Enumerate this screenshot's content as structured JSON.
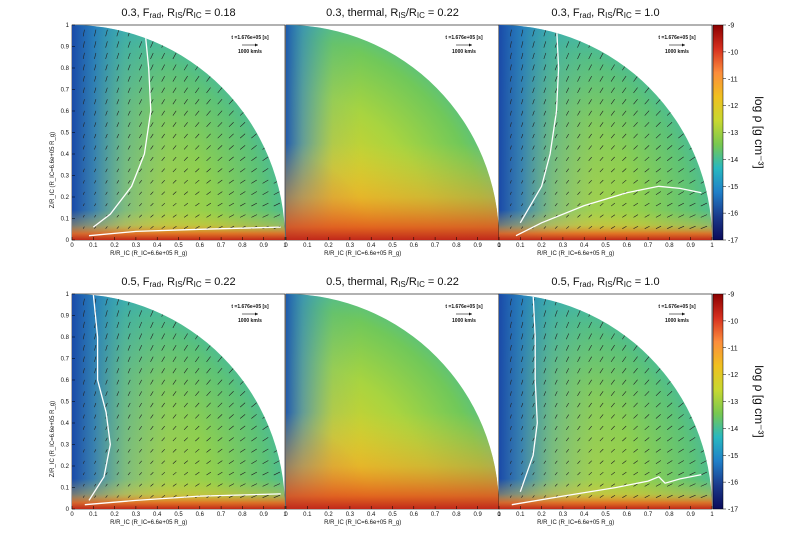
{
  "chart_data": [
    {
      "type": "heatmap",
      "title": "0.3, F<sub>rad</sub>, R<sub>IS</sub>/R<sub>IC</sub> = 0.18",
      "title_text": "0.3, Fᵣₐd, RIS/RIC = 0.18",
      "xlabel": "R/R_IC (R_IC=6.6e+05 R_g)",
      "ylabel": "Z/R_IC (R_IC=6.6e+05 R_g)",
      "xlim": [
        0,
        1
      ],
      "ylim": [
        0,
        1
      ],
      "time_label": "t =1.676e+05 [s]",
      "velocity_label": "1000 km/s",
      "contours": 2
    },
    {
      "type": "heatmap",
      "title_text": "0.3, thermal, RIS/RIC = 0.22",
      "xlabel": "R/R_IC (R_IC=6.6e+05 R_g)",
      "xlim": [
        0,
        1
      ],
      "ylim": [
        0,
        1
      ],
      "time_label": "t =1.676e+05 [s]",
      "velocity_label": "1000 km/s",
      "contours": 0
    },
    {
      "type": "heatmap",
      "title_text": "0.3, Fᵣₐd, RIS/RIC = 1.0",
      "xlabel": "R/R_IC (R_IC=6.6e+05 R_g)",
      "xlim": [
        0,
        1
      ],
      "ylim": [
        0,
        1
      ],
      "time_label": "t =1.676e+05 [s]",
      "velocity_label": "1000 km/s",
      "contours": 2
    },
    {
      "type": "heatmap",
      "title_text": "0.5, Fᵣₐd, RIS/RIC = 0.22",
      "xlabel": "R/R_IC (R_IC=6.6e+05 R_g)",
      "ylabel": "Z/R_IC (R_IC=6.6e+05 R_g)",
      "xlim": [
        0,
        1
      ],
      "ylim": [
        0,
        1
      ],
      "time_label": "t =1.676e+05 [s]",
      "velocity_label": "1000 km/s",
      "contours": 2
    },
    {
      "type": "heatmap",
      "title_text": "0.5, thermal, RIS/RIC = 0.22",
      "xlabel": "R/R_IC (R_IC=6.6e+05 R_g)",
      "xlim": [
        0,
        1
      ],
      "ylim": [
        0,
        1
      ],
      "time_label": "t =1.676e+05 [s]",
      "velocity_label": "1000 km/s",
      "contours": 0
    },
    {
      "type": "heatmap",
      "title_text": "0.5, Fᵣₐd, RIS/RIC = 1.0",
      "xlabel": "R/R_IC (R_IC=6.6e+05 R_g)",
      "xlim": [
        0,
        1
      ],
      "ylim": [
        0,
        1
      ],
      "time_label": "t =1.676e+05 [s]",
      "velocity_label": "1000 km/s",
      "contours": 2
    }
  ],
  "colorbar": {
    "label": "log ρ [g cm⁻³]",
    "range": [
      -17,
      -9
    ],
    "ticks": [
      "-9",
      "-10",
      "-11",
      "-12",
      "-13",
      "-14",
      "-15",
      "-16",
      "-17"
    ],
    "colors": [
      "#8b0000",
      "#d7301f",
      "#fc8d3c",
      "#f0c020",
      "#c8d830",
      "#78c850",
      "#28b8c0",
      "#1f7fc8",
      "#1b3a8c",
      "#0a0a5a"
    ]
  },
  "axes": {
    "xticks": [
      "0",
      "0.1",
      "0.2",
      "0.3",
      "0.4",
      "0.5",
      "0.6",
      "0.7",
      "0.8",
      "0.9",
      "1"
    ],
    "yticks": [
      "0",
      "0.1",
      "0.2",
      "0.3",
      "0.4",
      "0.5",
      "0.6",
      "0.7",
      "0.8",
      "0.9",
      "1"
    ]
  }
}
